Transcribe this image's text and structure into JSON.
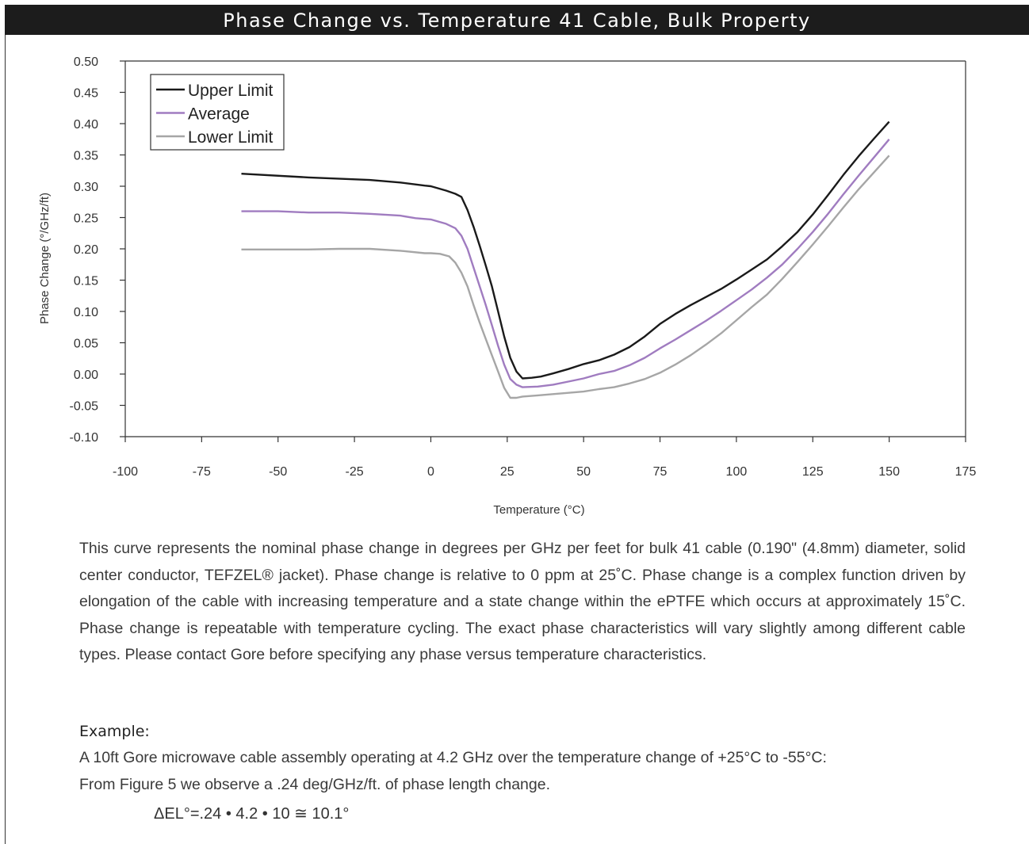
{
  "chart_data": {
    "type": "line",
    "title": "Phase Change vs. Temperature 41 Cable, Bulk Property",
    "xlabel": "Temperature (°C)",
    "ylabel": "Phase Change (°/GHz/ft)",
    "xlim": [
      -100,
      175
    ],
    "ylim": [
      -0.1,
      0.5
    ],
    "x_ticks": [
      "-100",
      "-75",
      "-50",
      "-25",
      "0",
      "25",
      "50",
      "75",
      "100",
      "125",
      "150",
      "175"
    ],
    "y_ticks": [
      "0.50",
      "0.45",
      "0.40",
      "0.35",
      "0.30",
      "0.25",
      "0.20",
      "0.15",
      "0.10",
      "0.05",
      "0.00",
      "-0.05",
      "-0.10"
    ],
    "grid": false,
    "legend_position": "top-left",
    "series": [
      {
        "name": "Upper Limit",
        "color": "#1a1a1a",
        "points": [
          [
            -62,
            0.32
          ],
          [
            -40,
            0.314
          ],
          [
            -20,
            0.31
          ],
          [
            -10,
            0.306
          ],
          [
            -2,
            0.301
          ],
          [
            0,
            0.3
          ],
          [
            5,
            0.293
          ],
          [
            8,
            0.288
          ],
          [
            10,
            0.283
          ],
          [
            12,
            0.262
          ],
          [
            14,
            0.235
          ],
          [
            16,
            0.205
          ],
          [
            18,
            0.173
          ],
          [
            20,
            0.14
          ],
          [
            22,
            0.1
          ],
          [
            24,
            0.06
          ],
          [
            26,
            0.026
          ],
          [
            28,
            0.004
          ],
          [
            30,
            -0.007
          ],
          [
            33,
            -0.006
          ],
          [
            36,
            -0.004
          ],
          [
            40,
            0.001
          ],
          [
            45,
            0.008
          ],
          [
            50,
            0.016
          ],
          [
            55,
            0.022
          ],
          [
            60,
            0.031
          ],
          [
            65,
            0.043
          ],
          [
            70,
            0.06
          ],
          [
            75,
            0.08
          ],
          [
            80,
            0.096
          ],
          [
            85,
            0.11
          ],
          [
            90,
            0.123
          ],
          [
            95,
            0.136
          ],
          [
            100,
            0.151
          ],
          [
            105,
            0.167
          ],
          [
            110,
            0.183
          ],
          [
            115,
            0.204
          ],
          [
            120,
            0.227
          ],
          [
            125,
            0.255
          ],
          [
            130,
            0.286
          ],
          [
            135,
            0.318
          ],
          [
            140,
            0.348
          ],
          [
            145,
            0.376
          ],
          [
            150,
            0.403
          ]
        ]
      },
      {
        "name": "Average",
        "color": "#a07cc0",
        "points": [
          [
            -62,
            0.26
          ],
          [
            -50,
            0.26
          ],
          [
            -40,
            0.258
          ],
          [
            -30,
            0.258
          ],
          [
            -20,
            0.256
          ],
          [
            -10,
            0.253
          ],
          [
            -5,
            0.249
          ],
          [
            0,
            0.247
          ],
          [
            5,
            0.24
          ],
          [
            8,
            0.233
          ],
          [
            10,
            0.221
          ],
          [
            12,
            0.2
          ],
          [
            14,
            0.17
          ],
          [
            16,
            0.14
          ],
          [
            18,
            0.11
          ],
          [
            20,
            0.078
          ],
          [
            22,
            0.045
          ],
          [
            24,
            0.015
          ],
          [
            26,
            -0.008
          ],
          [
            28,
            -0.017
          ],
          [
            30,
            -0.021
          ],
          [
            35,
            -0.02
          ],
          [
            40,
            -0.017
          ],
          [
            45,
            -0.012
          ],
          [
            50,
            -0.007
          ],
          [
            55,
            0.0
          ],
          [
            60,
            0.005
          ],
          [
            65,
            0.014
          ],
          [
            70,
            0.026
          ],
          [
            75,
            0.041
          ],
          [
            80,
            0.055
          ],
          [
            85,
            0.07
          ],
          [
            90,
            0.085
          ],
          [
            95,
            0.101
          ],
          [
            100,
            0.118
          ],
          [
            105,
            0.135
          ],
          [
            110,
            0.154
          ],
          [
            115,
            0.175
          ],
          [
            120,
            0.2
          ],
          [
            125,
            0.227
          ],
          [
            130,
            0.256
          ],
          [
            135,
            0.287
          ],
          [
            140,
            0.317
          ],
          [
            145,
            0.346
          ],
          [
            150,
            0.375
          ]
        ]
      },
      {
        "name": "Lower Limit",
        "color": "#a6a6a6",
        "points": [
          [
            -62,
            0.199
          ],
          [
            -50,
            0.199
          ],
          [
            -40,
            0.199
          ],
          [
            -30,
            0.2
          ],
          [
            -20,
            0.2
          ],
          [
            -10,
            0.197
          ],
          [
            -2,
            0.193
          ],
          [
            0,
            0.193
          ],
          [
            3,
            0.192
          ],
          [
            6,
            0.188
          ],
          [
            8,
            0.178
          ],
          [
            10,
            0.162
          ],
          [
            12,
            0.14
          ],
          [
            14,
            0.11
          ],
          [
            16,
            0.082
          ],
          [
            18,
            0.056
          ],
          [
            20,
            0.03
          ],
          [
            22,
            0.004
          ],
          [
            24,
            -0.022
          ],
          [
            26,
            -0.038
          ],
          [
            28,
            -0.038
          ],
          [
            30,
            -0.036
          ],
          [
            35,
            -0.034
          ],
          [
            40,
            -0.032
          ],
          [
            45,
            -0.03
          ],
          [
            50,
            -0.028
          ],
          [
            55,
            -0.024
          ],
          [
            60,
            -0.021
          ],
          [
            65,
            -0.015
          ],
          [
            70,
            -0.008
          ],
          [
            75,
            0.002
          ],
          [
            80,
            0.015
          ],
          [
            85,
            0.03
          ],
          [
            90,
            0.047
          ],
          [
            95,
            0.065
          ],
          [
            100,
            0.086
          ],
          [
            105,
            0.107
          ],
          [
            110,
            0.127
          ],
          [
            115,
            0.152
          ],
          [
            120,
            0.179
          ],
          [
            125,
            0.207
          ],
          [
            130,
            0.236
          ],
          [
            135,
            0.266
          ],
          [
            140,
            0.295
          ],
          [
            145,
            0.322
          ],
          [
            150,
            0.349
          ]
        ]
      }
    ]
  },
  "text": {
    "description": "This curve represents the nominal phase change in degrees per GHz per feet for bulk 41 cable (0.190\" (4.8mm) diameter, solid center conductor, TEFZEL® jacket). Phase change is relative to 0 ppm at 25˚C. Phase change is a complex function driven by elongation of the cable with increasing temperature and a state change within the ePTFE which occurs at approximately 15˚C. Phase change is repeatable with temperature cycling. The exact phase characteristics will vary slightly among different cable types. Please contact Gore before specifying any phase versus temperature characteristics.",
    "example_heading": "Example:",
    "example_line1": "A 10ft Gore microwave cable assembly operating at 4.2 GHz over the temperature change of +25°C to -55°C:",
    "example_line2": "From Figure 5 we observe a .24 deg/GHz/ft. of phase length change.",
    "formula": "ΔEL°=.24 • 4.2 • 10 ≅ 10.1°"
  }
}
